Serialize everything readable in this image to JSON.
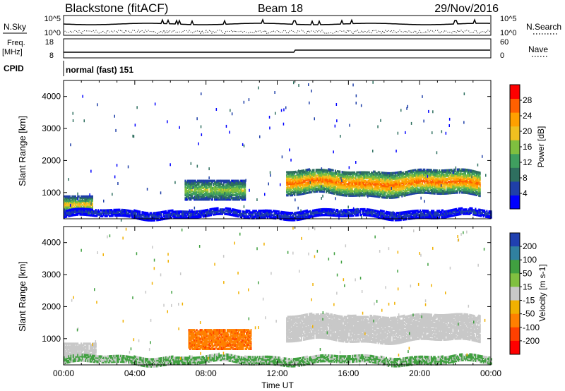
{
  "header": {
    "station": "Blackstone (fitACF)",
    "beam": "Beam 18",
    "date": "29/Nov/2016"
  },
  "top_panels": {
    "nsky_label": "N.Sky",
    "nsky_ticks": [
      "10^5",
      "10^0"
    ],
    "nsearch_label": "N.Search",
    "nsearch_ticks": [
      "10^5",
      "10^0"
    ],
    "freq_label_line1": "Freq.",
    "freq_label_line2": "[MHz]",
    "freq_ticks": [
      "18",
      "8"
    ],
    "nave_label": "Nave",
    "nave_ticks": [
      "60",
      "0"
    ],
    "cpid_label": "CPID",
    "cpid_text": "normal (fast) 151"
  },
  "colors": {
    "power": [
      "#0000ff",
      "#1f3fa8",
      "#2e6f5f",
      "#3f9f5f",
      "#7fbf3f",
      "#f0c020",
      "#ffa000",
      "#ff6000",
      "#ff0000"
    ],
    "velocity_pos": [
      "#2040b0",
      "#3080a0",
      "#40a040",
      "#80c040"
    ],
    "velocity_neutral": "#c8c8c8",
    "velocity_neg": [
      "#f0b000",
      "#ff8000",
      "#ff4000",
      "#ff0000"
    ]
  },
  "chart_data": [
    {
      "type": "heatmap",
      "name": "power",
      "xlabel": "",
      "ylabel": "Slant Range [km]",
      "x_ticks": [
        "00:00",
        "04:00",
        "08:00",
        "12:00",
        "16:00",
        "20:00",
        "00:00"
      ],
      "y_ticks": [
        1000,
        2000,
        3000,
        4000
      ],
      "xlim": [
        0,
        24
      ],
      "ylim": [
        180,
        4500
      ],
      "colorbar": {
        "label": "Power [dB]",
        "ticks": [
          4,
          8,
          12,
          16,
          20,
          24,
          28
        ],
        "range": [
          0,
          32
        ]
      },
      "features": [
        {
          "t0": 0.0,
          "t1": 1.6,
          "r_lo": 350,
          "r_hi": 850,
          "peak_db": 24
        },
        {
          "t0": 6.8,
          "t1": 10.2,
          "r_lo": 750,
          "r_hi": 1350,
          "peak_db": 20
        },
        {
          "t0": 12.5,
          "t1": 23.4,
          "r_lo": 900,
          "r_hi": 1650,
          "peak_db": 30
        },
        {
          "t0": 0.0,
          "t1": 24.0,
          "r_lo": 200,
          "r_hi": 420,
          "peak_db": 6
        }
      ]
    },
    {
      "type": "heatmap",
      "name": "velocity",
      "xlabel": "Time UT",
      "ylabel": "Slant Range [km]",
      "x_ticks": [
        "00:00",
        "04:00",
        "08:00",
        "12:00",
        "16:00",
        "20:00",
        "00:00"
      ],
      "y_ticks": [
        1000,
        2000,
        3000,
        4000
      ],
      "xlim": [
        0,
        24
      ],
      "ylim": [
        180,
        4500
      ],
      "colorbar": {
        "label": "Velocity [m s-1]",
        "ticks": [
          "200",
          "100",
          "50",
          "15",
          "-15",
          "-50",
          "-100",
          "-200"
        ]
      },
      "features": [
        {
          "t0": 0.0,
          "t1": 1.8,
          "r_lo": 450,
          "r_hi": 850,
          "velocity_ms": 0
        },
        {
          "t0": 7.0,
          "t1": 10.5,
          "r_lo": 650,
          "r_hi": 1250,
          "velocity_ms": -90
        },
        {
          "t0": 12.5,
          "t1": 23.4,
          "r_lo": 900,
          "r_hi": 1700,
          "velocity_ms": 0
        },
        {
          "t0": 0.0,
          "t1": 24.0,
          "r_lo": 200,
          "r_hi": 420,
          "velocity_ms": 20
        }
      ]
    }
  ]
}
